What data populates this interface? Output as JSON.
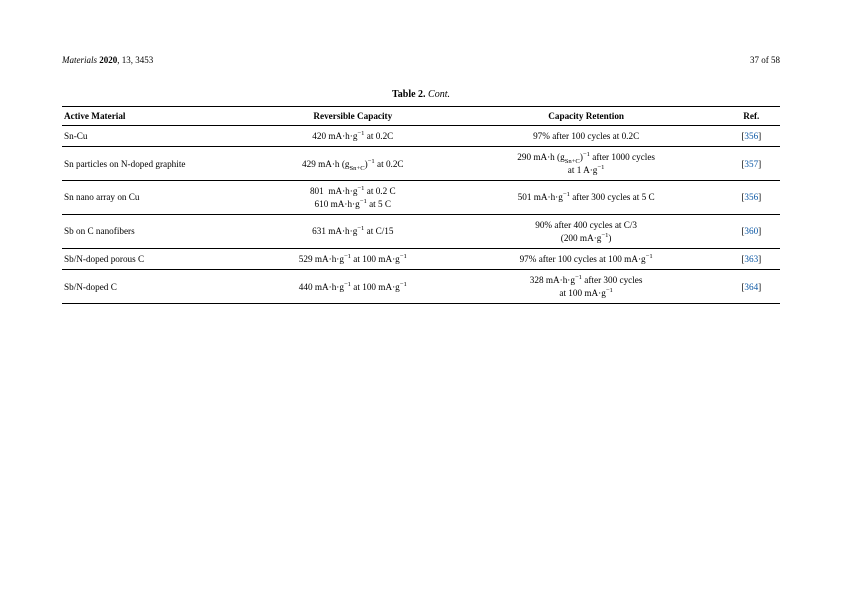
{
  "header": {
    "journal_italic": "Materials",
    "year_bold": "2020",
    "vol_issue": ", 13, 3453",
    "page_num": "37 of 58"
  },
  "caption": {
    "label": "Table 2.",
    "cont": "Cont."
  },
  "table": {
    "columns": [
      "Active Material",
      "Reversible Capacity",
      "Capacity Retention",
      "Ref."
    ],
    "col_align": [
      "left",
      "center",
      "center",
      "center"
    ],
    "col_widths_pct": [
      27,
      27,
      38,
      8
    ],
    "border_color": "#000000",
    "ref_link_color": "#0b57a4",
    "background_color": "#ffffff",
    "font_size_pt": 9.2,
    "rows": [
      {
        "material": "Sn-Cu",
        "capacity_html": "420 mA·h·g<sup>−1</sup> at 0.2C",
        "retention_html": "97% after 100 cycles at 0.2C",
        "ref": "356"
      },
      {
        "material": "Sn particles on N-doped graphite",
        "capacity_html": "429 mA·h (g<sub>Sn+C</sub>)<sup>−1</sup> at 0.2C",
        "retention_html": "290 mA·h (g<sub>Sn+C</sub>)<sup>−1</sup> after 1000 cycles<br>at 1 A·g<sup>−1</sup>",
        "ref": "357"
      },
      {
        "material": "Sn nano array on Cu",
        "capacity_html": "801 &nbsp;mA·h·g<sup>−1</sup> at 0.2 C<br>610 mA·h·g<sup>−1</sup> at 5 C",
        "retention_html": "501 mA·h·g<sup>−1</sup> after 300 cycles at 5 C",
        "ref": "356"
      },
      {
        "material": "Sb on C nanofibers",
        "capacity_html": "631 mA·h·g<sup>−1</sup> at C/15",
        "retention_html": "90% after 400 cycles at C/3<br>(200 mA·g<sup>−1</sup>)",
        "ref": "360"
      },
      {
        "material": "Sb/N-doped porous C",
        "capacity_html": "529 mA·h·g<sup>−1</sup> at 100 mA·g<sup>−1</sup>",
        "retention_html": "97% after 100 cycles at 100 mA·g<sup>−1</sup>",
        "ref": "363"
      },
      {
        "material": "Sb/N-doped C",
        "capacity_html": "440 mA·h·g<sup>−1</sup> at 100 mA·g<sup>−1</sup>",
        "retention_html": "328 mA·h·g<sup>−1</sup> after 300 cycles<br>at 100 mA·g<sup>−1</sup>",
        "ref": "364"
      }
    ]
  }
}
